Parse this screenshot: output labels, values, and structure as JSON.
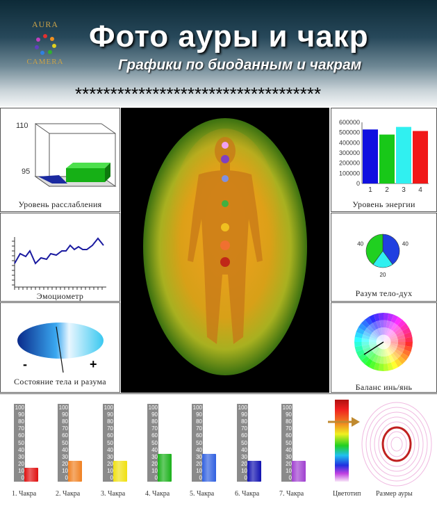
{
  "header": {
    "logo_top": "AURA",
    "logo_bottom": "CAMERA",
    "title": "Фото  ауры и чакр",
    "subtitle": "Графики по биоданным и чакрам",
    "stars": "***********************************"
  },
  "panels": {
    "relaxation": {
      "label": "Уровень расслабления",
      "tick_top": "110",
      "tick_bottom": "95"
    },
    "energy": {
      "label": "Уровень энергии",
      "chart_data": {
        "type": "bar",
        "categories": [
          "1",
          "2",
          "3",
          "4"
        ],
        "values": [
          530000,
          480000,
          555000,
          515000
        ],
        "yticks": [
          "600000",
          "500000",
          "400000",
          "300000",
          "200000",
          "100000",
          "0"
        ],
        "ylim": [
          0,
          600000
        ],
        "colors": [
          "#1010e0",
          "#18c818",
          "#30f0f0",
          "#f01818"
        ]
      }
    },
    "emotiometer": {
      "label": "Эмоциометр"
    },
    "mind_body": {
      "label": "Разум тело-дух",
      "chart_data": {
        "type": "pie",
        "labels": [
          "40",
          "20",
          "40"
        ],
        "values": [
          40,
          20,
          40
        ],
        "colors": [
          "#2040e0",
          "#30f0f0",
          "#20d020"
        ]
      }
    },
    "state": {
      "label": "Состояние тела и разума",
      "minus": "-",
      "plus": "+"
    },
    "yin_yang": {
      "label": "Баланс инь/янь"
    }
  },
  "chakras": {
    "ticks": [
      "100",
      "90",
      "80",
      "70",
      "60",
      "50",
      "40",
      "30",
      "20",
      "10",
      "0"
    ],
    "items": [
      {
        "label": "1. Чакра",
        "value": 20,
        "color": "#e01010"
      },
      {
        "label": "2. Чакра",
        "value": 30,
        "color": "#f08020"
      },
      {
        "label": "3. Чакра",
        "value": 30,
        "color": "#f0e010"
      },
      {
        "label": "4. Чакра",
        "value": 40,
        "color": "#18b018"
      },
      {
        "label": "5. Чакра",
        "value": 40,
        "color": "#3060e0"
      },
      {
        "label": "6. Чакра",
        "value": 30,
        "color": "#1010b0"
      },
      {
        "label": "7. Чакра",
        "value": 30,
        "color": "#a040d0"
      }
    ],
    "colortype_label": "Цветотип",
    "aura_size_label": "Размер ауры"
  }
}
